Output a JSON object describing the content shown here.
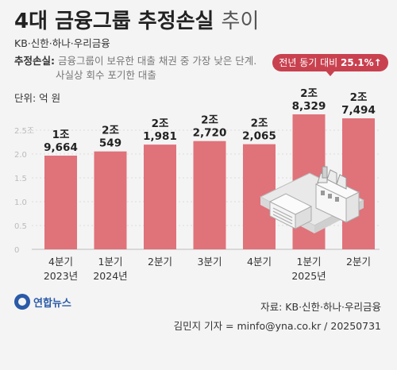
{
  "header": {
    "title_main": "4대 금융그룹 추정손실",
    "title_suffix": "추이",
    "subtitle": "KB·신한·하나·우리금융",
    "definition_label": "추정손실:",
    "definition_line1": "금융그룹이 보유한 대출 채권 중 가장 낮은 단계.",
    "definition_line2": "사실상 회수 포기한 대출",
    "unit": "단위: 억 원"
  },
  "callout": {
    "text": "전년 동기 대비",
    "value": "25.1%↑"
  },
  "chart_data": {
    "type": "bar",
    "categories": [
      [
        "4분기",
        "2023년"
      ],
      [
        "1분기",
        "2024년"
      ],
      [
        "2분기",
        ""
      ],
      [
        "3분기",
        ""
      ],
      [
        "4분기",
        ""
      ],
      [
        "1분기",
        "2025년"
      ],
      [
        "2분기",
        ""
      ]
    ],
    "values": [
      19664,
      20549,
      21981,
      22720,
      22065,
      28329,
      27494
    ],
    "value_labels": [
      [
        "1조",
        "9,664"
      ],
      [
        "2조",
        "549"
      ],
      [
        "2조",
        "1,981"
      ],
      [
        "2조",
        "2,720"
      ],
      [
        "2조",
        "2,065"
      ],
      [
        "2조",
        "8,329"
      ],
      [
        "2조",
        "7,494"
      ]
    ],
    "ylim": [
      0,
      30000
    ],
    "yticks": [
      0,
      5000,
      10000,
      15000,
      20000,
      25000
    ],
    "ytick_labels": [
      "0",
      "0.5",
      "1.0",
      "1.5",
      "2.0",
      "2.5조"
    ],
    "bar_color": "#e0727a",
    "grid": false
  },
  "footer": {
    "source": "자료: KB·신한·하나·우리금융",
    "credit": "김민지 기자 = minfo@yna.co.kr / 20250731",
    "logo_text": "연합뉴스"
  }
}
